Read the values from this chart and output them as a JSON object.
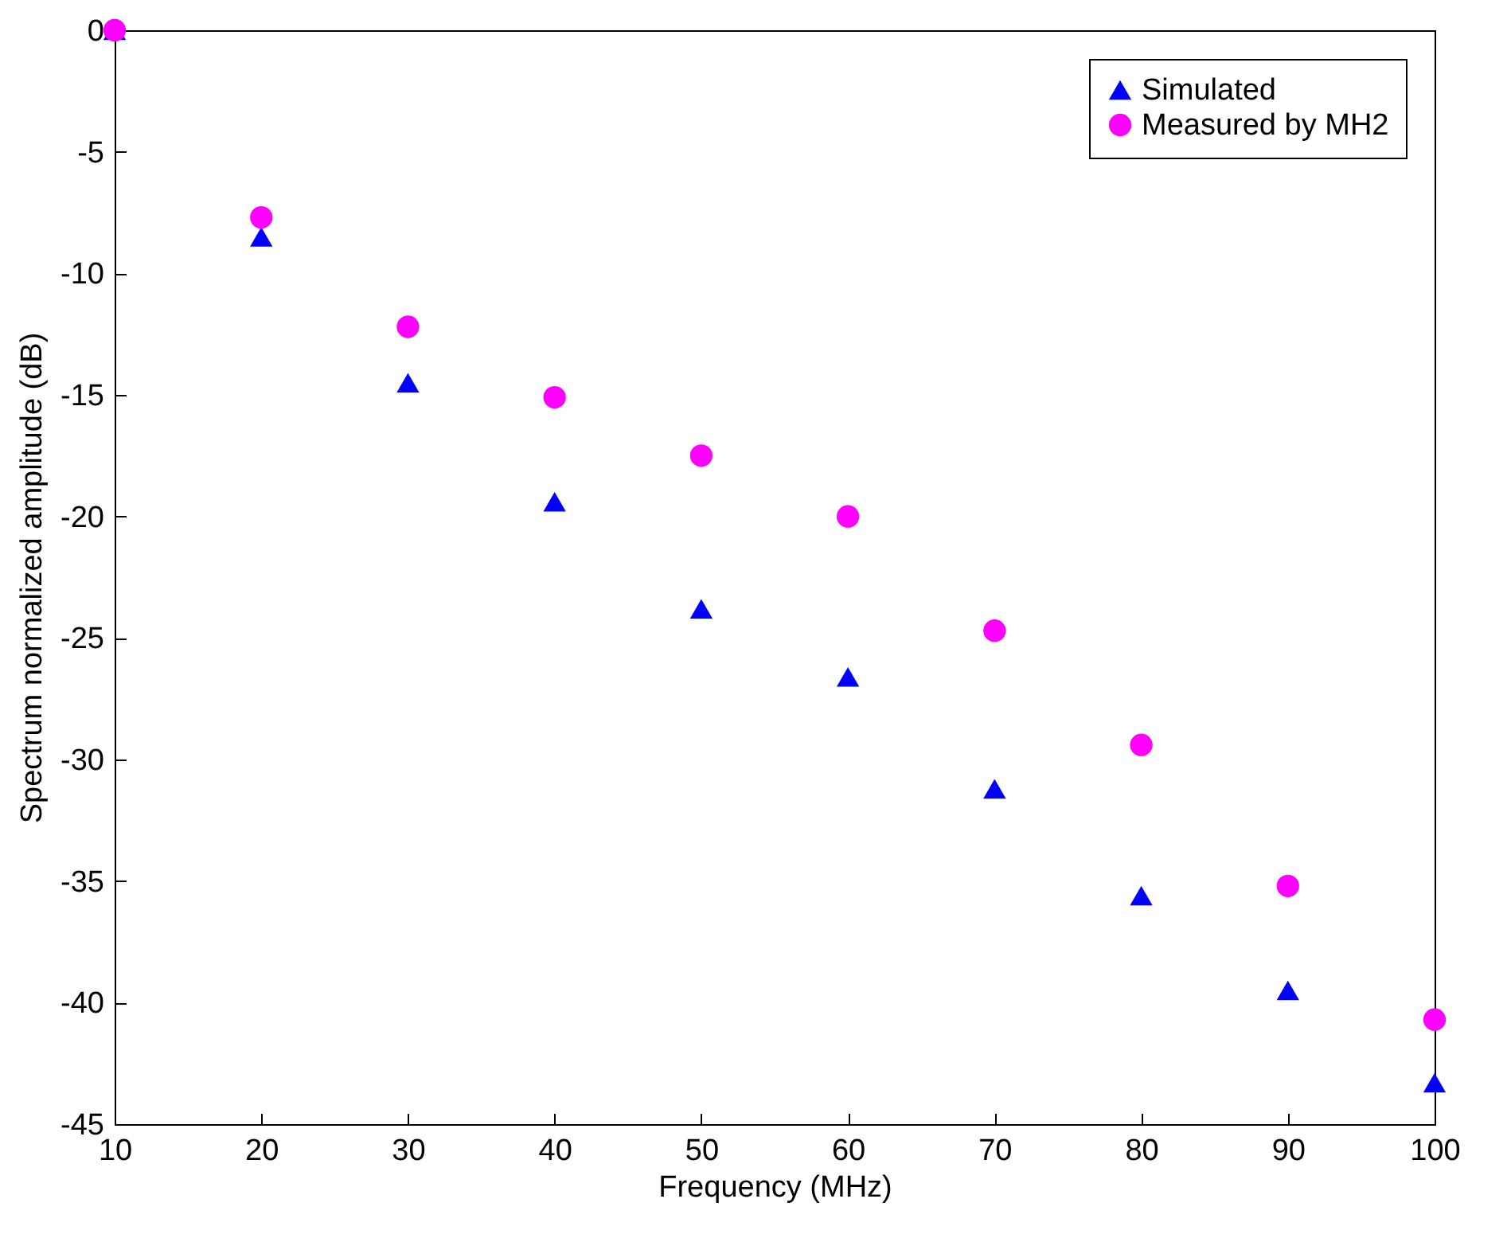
{
  "chart_data": {
    "type": "scatter",
    "xlabel": "Frequency (MHz)",
    "ylabel": "Spectrum normalized amplitude (dB)",
    "x": [
      10,
      20,
      30,
      40,
      50,
      60,
      70,
      80,
      90,
      100
    ],
    "series": [
      {
        "name": "Simulated",
        "color": "#0000ff",
        "marker": "triangle",
        "values": [
          0,
          -8.5,
          -14.5,
          -19.4,
          -23.8,
          -26.6,
          -31.2,
          -35.6,
          -39.5,
          -43.3
        ]
      },
      {
        "name": "Measured by MH2",
        "color": "#ff00ff",
        "marker": "circle",
        "values": [
          0,
          -7.7,
          -12.2,
          -15.1,
          -17.5,
          -20.0,
          -24.7,
          -29.4,
          -35.2,
          -40.7
        ]
      }
    ],
    "xlim": [
      10,
      100
    ],
    "xticks": [
      10,
      20,
      30,
      40,
      50,
      60,
      70,
      80,
      90,
      100
    ],
    "ylim": [
      -45,
      0
    ],
    "yticks": [
      0,
      -5,
      -10,
      -15,
      -20,
      -25,
      -30,
      -35,
      -40,
      -45
    ],
    "grid": false,
    "legend": "top right"
  }
}
